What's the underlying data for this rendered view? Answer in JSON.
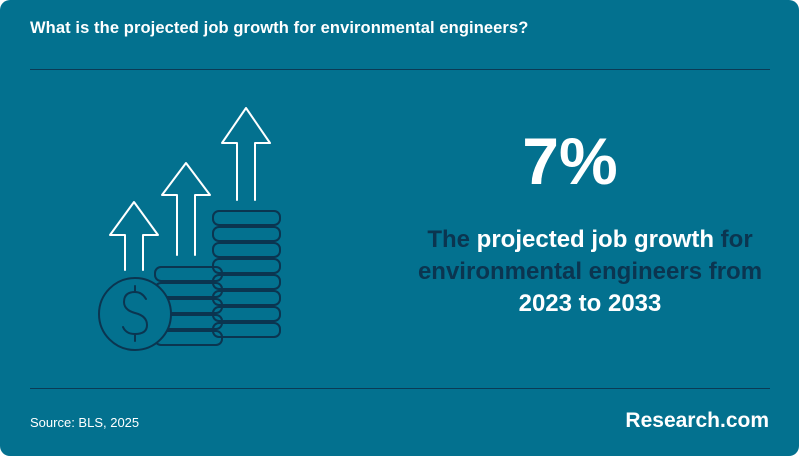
{
  "header": {
    "question": "What is the projected job growth for environmental engineers?"
  },
  "stat": {
    "value": "7%",
    "description_parts": [
      {
        "text": "The ",
        "highlight": false
      },
      {
        "text": "projected job growth",
        "highlight": true
      },
      {
        "text": " for environmental engineers from ",
        "highlight": false
      },
      {
        "text": "2023 to 2033",
        "highlight": true
      }
    ]
  },
  "illustration": {
    "icon": "growth-coins-arrows-icon"
  },
  "footer": {
    "source": "Source: BLS, 2025",
    "brand": "Research.com"
  },
  "colors": {
    "background": "#03718f",
    "rule": "#0b3b55",
    "dark_text": "#0b3550",
    "highlight_text": "#ffffff"
  }
}
